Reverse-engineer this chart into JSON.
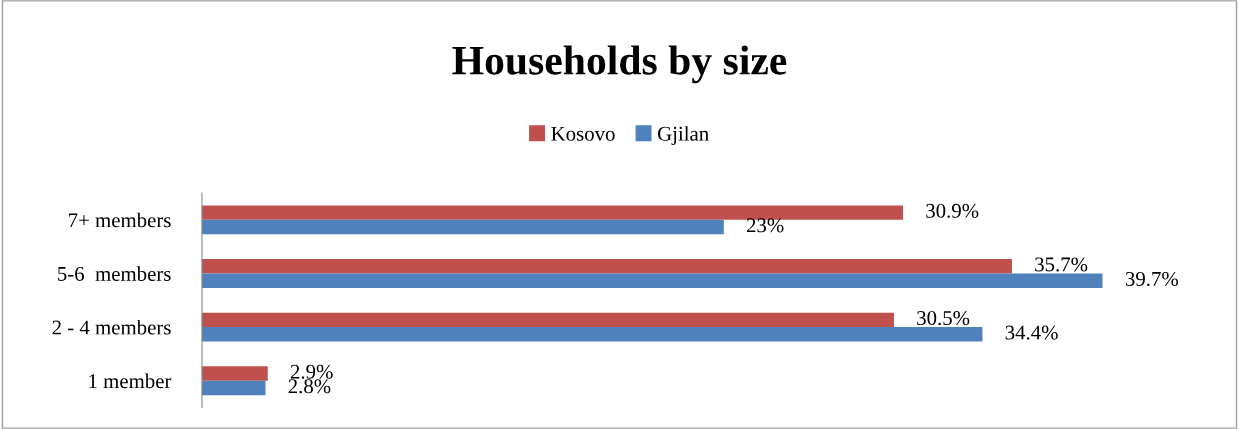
{
  "chart_data": {
    "type": "bar",
    "orientation": "horizontal",
    "title": "Households by size",
    "categories": [
      "7+ members",
      "5-6  members",
      "2 - 4 members",
      "1 member"
    ],
    "series": [
      {
        "name": "Kosovo",
        "color": "#c0504d",
        "values": [
          30.9,
          35.7,
          30.5,
          2.9
        ],
        "value_labels": [
          "30.9%",
          "35.7%",
          "30.5%",
          "2.9%"
        ]
      },
      {
        "name": "Gjilan",
        "color": "#4f81bd",
        "values": [
          23,
          39.7,
          34.4,
          2.8
        ],
        "value_labels": [
          "23%",
          "39.7%",
          "34.4%",
          "2.8%"
        ]
      }
    ],
    "tick_labels": "y",
    "legend": "top",
    "grid": false
  }
}
